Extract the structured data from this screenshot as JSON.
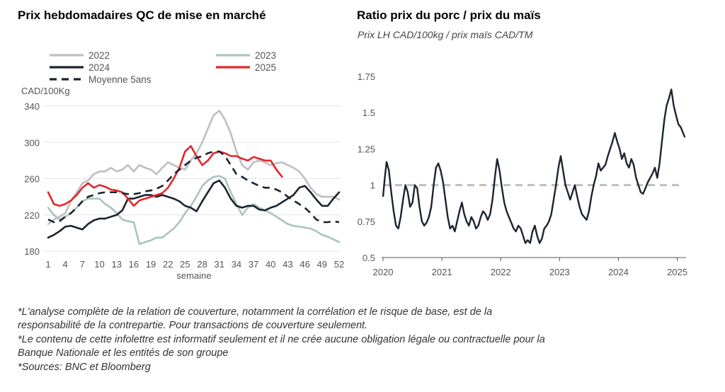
{
  "chart_data": [
    {
      "type": "line",
      "title": "Prix hebdomadaires QC de mise en marché",
      "ylabel": "CAD/100Kg",
      "xlabel": "semaine",
      "ylim": [
        180,
        340
      ],
      "yticks": [
        "340",
        "300",
        "260",
        "220",
        "180"
      ],
      "yticks_values": [
        340,
        300,
        260,
        220,
        180
      ],
      "xticks": [
        "1",
        "4",
        "7",
        "10",
        "13",
        "16",
        "19",
        "22",
        "25",
        "28",
        "31",
        "34",
        "37",
        "40",
        "43",
        "46",
        "49",
        "52"
      ],
      "grid": true,
      "legend_position": "top",
      "series": [
        {
          "name": "2022",
          "color": "#bfbfbf",
          "style": "solid",
          "x": [
            1,
            2,
            3,
            4,
            5,
            6,
            7,
            8,
            9,
            10,
            11,
            12,
            13,
            14,
            15,
            16,
            17,
            18,
            19,
            20,
            21,
            22,
            23,
            24,
            25,
            26,
            27,
            28,
            29,
            30,
            31,
            32,
            33,
            34,
            35,
            36,
            37,
            38,
            39,
            40,
            41,
            42,
            43,
            44,
            45,
            46,
            47,
            48,
            49,
            50,
            51,
            52
          ],
          "values": [
            210,
            215,
            218,
            222,
            235,
            245,
            255,
            258,
            265,
            268,
            268,
            272,
            268,
            270,
            275,
            268,
            275,
            272,
            270,
            265,
            272,
            278,
            275,
            272,
            270,
            280,
            288,
            300,
            315,
            330,
            335,
            325,
            310,
            290,
            275,
            270,
            278,
            280,
            278,
            275,
            277,
            278,
            275,
            272,
            268,
            260,
            250,
            243,
            240,
            240,
            240,
            237
          ]
        },
        {
          "name": "2023",
          "color": "#a9c5bd",
          "style": "solid",
          "x": [
            1,
            2,
            3,
            4,
            5,
            6,
            7,
            8,
            9,
            10,
            11,
            12,
            13,
            14,
            15,
            16,
            17,
            18,
            19,
            20,
            21,
            22,
            23,
            24,
            25,
            26,
            27,
            28,
            29,
            30,
            31,
            32,
            33,
            34,
            35,
            36,
            37,
            38,
            39,
            40,
            41,
            42,
            43,
            44,
            45,
            46,
            47,
            48,
            49,
            50,
            51,
            52
          ],
          "values": [
            228,
            220,
            215,
            218,
            222,
            228,
            235,
            238,
            238,
            238,
            232,
            228,
            222,
            215,
            213,
            212,
            188,
            190,
            192,
            195,
            195,
            200,
            205,
            212,
            222,
            230,
            240,
            252,
            258,
            262,
            263,
            260,
            245,
            232,
            220,
            228,
            232,
            228,
            225,
            222,
            218,
            214,
            210,
            208,
            207,
            206,
            205,
            202,
            198,
            196,
            193,
            190
          ]
        },
        {
          "name": "2024",
          "color": "#1b2430",
          "style": "solid",
          "x": [
            1,
            2,
            3,
            4,
            5,
            6,
            7,
            8,
            9,
            10,
            11,
            12,
            13,
            14,
            15,
            16,
            17,
            18,
            19,
            20,
            21,
            22,
            23,
            24,
            25,
            26,
            27,
            28,
            29,
            30,
            31,
            32,
            33,
            34,
            35,
            36,
            37,
            38,
            39,
            40,
            41,
            42,
            43,
            44,
            45,
            46,
            47,
            48,
            49,
            50,
            51,
            52
          ],
          "values": [
            195,
            198,
            202,
            207,
            208,
            206,
            204,
            210,
            214,
            216,
            216,
            218,
            220,
            225,
            238,
            238,
            240,
            242,
            242,
            240,
            242,
            240,
            238,
            235,
            230,
            228,
            224,
            235,
            245,
            255,
            258,
            250,
            238,
            230,
            228,
            230,
            230,
            226,
            225,
            228,
            230,
            234,
            238,
            242,
            250,
            252,
            245,
            237,
            230,
            230,
            238,
            245
          ]
        },
        {
          "name": "2025",
          "color": "#e3262b",
          "style": "solid",
          "x": [
            1,
            2,
            3,
            4,
            5,
            6,
            7,
            8,
            9,
            10,
            11,
            12,
            13,
            14,
            15,
            16,
            17,
            18,
            19,
            20,
            21,
            22,
            23,
            24,
            25,
            26,
            27,
            28,
            29,
            30,
            31,
            32,
            33,
            34,
            35,
            36,
            37,
            38,
            39,
            40,
            41,
            42
          ],
          "values": [
            245,
            232,
            230,
            232,
            236,
            242,
            250,
            255,
            250,
            253,
            251,
            248,
            247,
            245,
            238,
            230,
            236,
            238,
            240,
            242,
            244,
            250,
            260,
            272,
            290,
            296,
            285,
            275,
            280,
            288,
            290,
            288,
            285,
            285,
            282,
            280,
            284,
            282,
            280,
            280,
            270,
            262
          ]
        },
        {
          "name": "Moyenne 5ans",
          "color": "#1b2430",
          "style": "dashed",
          "x": [
            1,
            2,
            3,
            4,
            5,
            6,
            7,
            8,
            9,
            10,
            11,
            12,
            13,
            14,
            15,
            16,
            17,
            18,
            19,
            20,
            21,
            22,
            23,
            24,
            25,
            26,
            27,
            28,
            29,
            30,
            31,
            32,
            33,
            34,
            35,
            36,
            37,
            38,
            39,
            40,
            41,
            42,
            43,
            44,
            45,
            46,
            47,
            48,
            49,
            50,
            51,
            52
          ],
          "values": [
            215,
            212,
            213,
            218,
            222,
            228,
            235,
            240,
            242,
            244,
            245,
            245,
            245,
            244,
            243,
            243,
            244,
            246,
            247,
            249,
            252,
            258,
            265,
            270,
            275,
            280,
            283,
            285,
            288,
            290,
            290,
            285,
            275,
            265,
            262,
            258,
            255,
            252,
            250,
            250,
            248,
            245,
            240,
            236,
            232,
            228,
            222,
            215,
            212,
            212,
            213,
            212
          ]
        }
      ]
    },
    {
      "type": "line",
      "title": "Ratio prix du porc / prix du maïs",
      "subtitle": "Prix LH CAD/100kg / prix maïs CAD/TM",
      "ylim": [
        0.5,
        1.75
      ],
      "yticks": [
        "1.75",
        "1.5",
        "1.25",
        "1",
        "0.75",
        "0.5"
      ],
      "yticks_values": [
        1.75,
        1.5,
        1.25,
        1.0,
        0.75,
        0.5
      ],
      "xticks": [
        "2020",
        "2021",
        "2022",
        "2023",
        "2024",
        "2025"
      ],
      "xticks_values": [
        2020,
        2021,
        2022,
        2023,
        2024,
        2025
      ],
      "xlim": [
        2020,
        2025.15
      ],
      "reference_line": {
        "value": 1.0,
        "color": "#bfbfbf",
        "style": "dashed"
      },
      "series": [
        {
          "color": "#1b2430",
          "x": [
            2020.0,
            2020.03,
            2020.06,
            2020.1,
            2020.14,
            2020.18,
            2020.22,
            2020.26,
            2020.3,
            2020.34,
            2020.38,
            2020.42,
            2020.46,
            2020.5,
            2020.54,
            2020.58,
            2020.62,
            2020.66,
            2020.7,
            2020.74,
            2020.78,
            2020.82,
            2020.86,
            2020.9,
            2020.94,
            2020.98,
            2021.02,
            2021.06,
            2021.1,
            2021.14,
            2021.18,
            2021.22,
            2021.26,
            2021.3,
            2021.34,
            2021.38,
            2021.42,
            2021.46,
            2021.5,
            2021.54,
            2021.58,
            2021.62,
            2021.66,
            2021.7,
            2021.74,
            2021.78,
            2021.82,
            2021.86,
            2021.9,
            2021.94,
            2021.98,
            2022.02,
            2022.06,
            2022.1,
            2022.14,
            2022.18,
            2022.22,
            2022.26,
            2022.3,
            2022.34,
            2022.38,
            2022.42,
            2022.46,
            2022.5,
            2022.54,
            2022.58,
            2022.62,
            2022.66,
            2022.7,
            2022.74,
            2022.78,
            2022.82,
            2022.86,
            2022.9,
            2022.94,
            2022.98,
            2023.02,
            2023.06,
            2023.1,
            2023.14,
            2023.18,
            2023.22,
            2023.26,
            2023.3,
            2023.34,
            2023.38,
            2023.42,
            2023.46,
            2023.5,
            2023.54,
            2023.58,
            2023.62,
            2023.66,
            2023.7,
            2023.74,
            2023.78,
            2023.82,
            2023.86,
            2023.9,
            2023.94,
            2023.98,
            2024.02,
            2024.06,
            2024.1,
            2024.14,
            2024.18,
            2024.22,
            2024.26,
            2024.3,
            2024.34,
            2024.38,
            2024.42,
            2024.46,
            2024.5,
            2024.54,
            2024.58,
            2024.62,
            2024.66,
            2024.7,
            2024.74,
            2024.78,
            2024.82,
            2024.86,
            2024.9,
            2024.94,
            2024.98,
            2025.02,
            2025.06,
            2025.1,
            2025.13
          ],
          "values": [
            0.92,
            1.05,
            1.16,
            1.1,
            0.95,
            0.82,
            0.72,
            0.7,
            0.78,
            0.9,
            1.0,
            0.95,
            0.85,
            0.88,
            1.0,
            0.98,
            0.85,
            0.75,
            0.72,
            0.74,
            0.78,
            0.85,
            1.0,
            1.12,
            1.15,
            1.1,
            1.02,
            0.9,
            0.78,
            0.7,
            0.72,
            0.68,
            0.75,
            0.82,
            0.88,
            0.8,
            0.75,
            0.72,
            0.78,
            0.75,
            0.7,
            0.72,
            0.78,
            0.82,
            0.8,
            0.76,
            0.8,
            0.9,
            1.05,
            1.18,
            1.1,
            0.98,
            0.88,
            0.82,
            0.78,
            0.74,
            0.7,
            0.68,
            0.72,
            0.7,
            0.65,
            0.6,
            0.62,
            0.6,
            0.68,
            0.72,
            0.65,
            0.6,
            0.63,
            0.7,
            0.72,
            0.75,
            0.8,
            0.9,
            1.0,
            1.12,
            1.2,
            1.1,
            1.0,
            0.95,
            0.9,
            0.95,
            1.0,
            0.92,
            0.85,
            0.8,
            0.78,
            0.76,
            0.82,
            0.92,
            1.0,
            1.06,
            1.15,
            1.1,
            1.12,
            1.14,
            1.2,
            1.25,
            1.3,
            1.36,
            1.3,
            1.25,
            1.18,
            1.22,
            1.15,
            1.12,
            1.18,
            1.14,
            1.05,
            1.0,
            0.95,
            0.94,
            0.98,
            1.02,
            1.05,
            1.08,
            1.12,
            1.05,
            1.15,
            1.3,
            1.45,
            1.55,
            1.6,
            1.66,
            1.55,
            1.48,
            1.42,
            1.4,
            1.36,
            1.33
          ]
        }
      ]
    }
  ],
  "footnotes": [
    "*L'analyse complète de la relation de couverture, notamment la corrélation et le risque de base, est de la",
    "responsabilité de la contrepartie. Pour transactions de couverture seulement.",
    "*Le contenu de cette infolettre est informatif seulement et il ne crée aucune obligation légale ou contractuelle pour la",
    "Banque Nationale et les entités de son groupe",
    "*Sources: BNC et Bloomberg"
  ]
}
